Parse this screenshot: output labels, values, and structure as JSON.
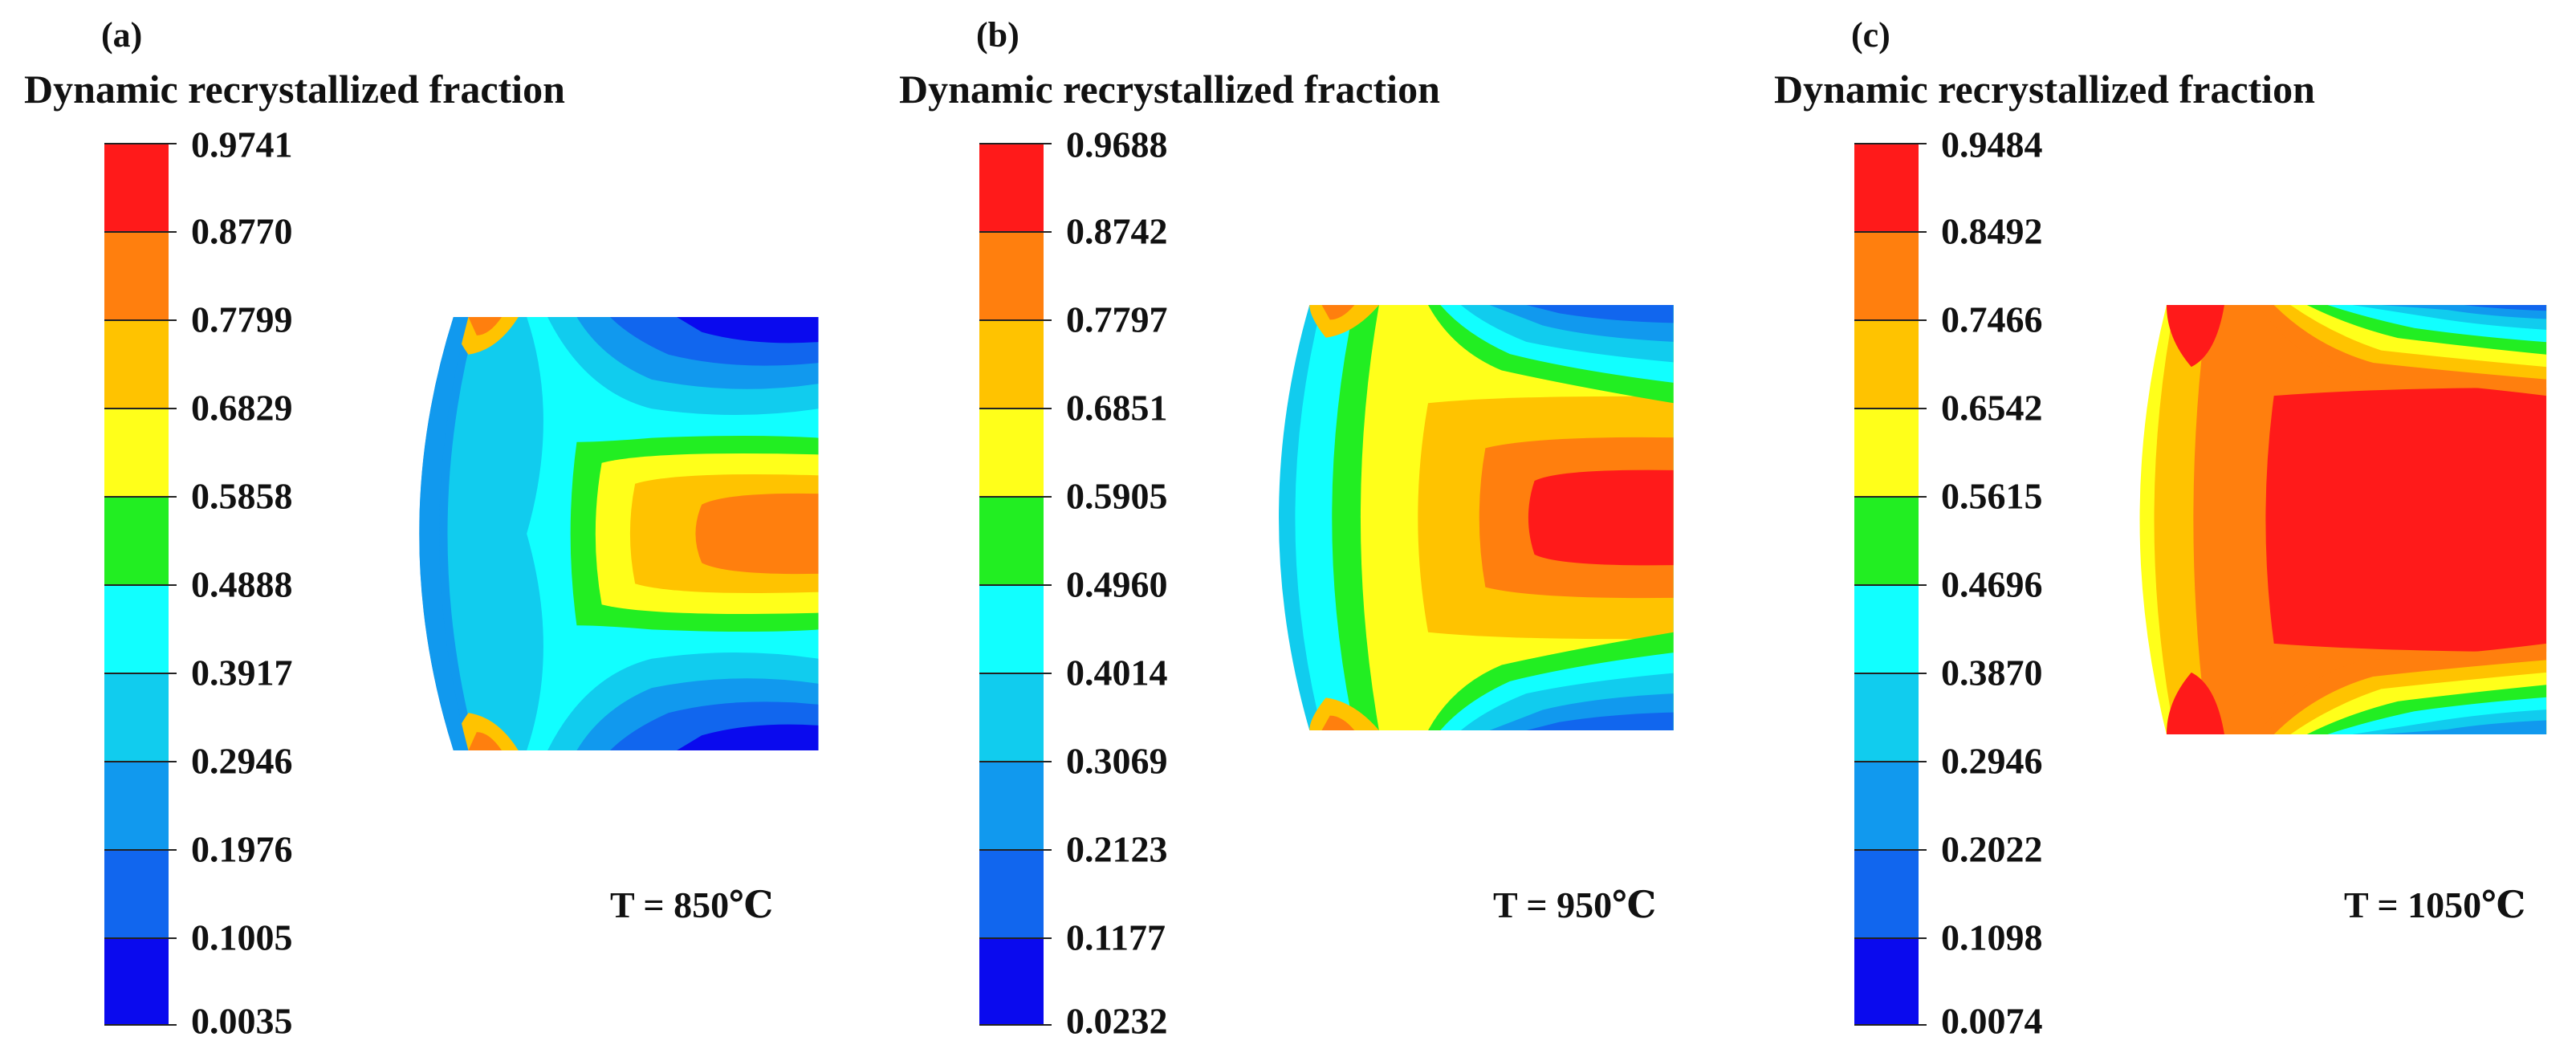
{
  "panels": [
    {
      "label": "(a)",
      "legend_title": "Dynamic recrystallized fraction",
      "ticks": [
        "0.9741",
        "0.8770",
        "0.7799",
        "0.6829",
        "0.5858",
        "0.4888",
        "0.3917",
        "0.2946",
        "0.1976",
        "0.1005",
        "0.0035"
      ],
      "temperature": "T = 850℃"
    },
    {
      "label": "(b)",
      "legend_title": "Dynamic recrystallized fraction",
      "ticks": [
        "0.9688",
        "0.8742",
        "0.7797",
        "0.6851",
        "0.5905",
        "0.4960",
        "0.4014",
        "0.3069",
        "0.2123",
        "0.1177",
        "0.0232"
      ],
      "temperature": "T = 950℃"
    },
    {
      "label": "(c)",
      "legend_title": "Dynamic recrystallized fraction",
      "ticks": [
        "0.9484",
        "0.8492",
        "0.7466",
        "0.6542",
        "0.5615",
        "0.4696",
        "0.3870",
        "0.2946",
        "0.2022",
        "0.1098",
        "0.0074"
      ],
      "temperature": "T = 1050℃"
    }
  ],
  "colors": {
    "red": "#ff1a1a",
    "orange": "#ff7f0e",
    "amber": "#ffc300",
    "yellow": "#ffff1a",
    "green": "#22ee22",
    "cyan": "#11ffff",
    "sky": "#11ccee",
    "light_blue": "#1199ee",
    "blue": "#1166ee",
    "deep_blue": "#0a0aee"
  }
}
